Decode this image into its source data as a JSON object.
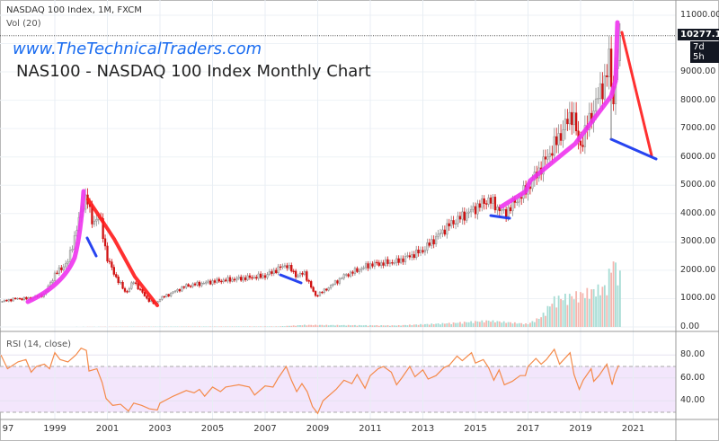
{
  "header": {
    "symbol_line": "NASDAQ 100 Index, 1M, FXCM",
    "volume_line": "Vol (20)",
    "website": "www.TheTechnicalTraders.com",
    "chart_title": "NAS100 - NASDAQ 100 Index Monthly Chart"
  },
  "last_price": {
    "value": "10277.19",
    "countdown": "7d 5h"
  },
  "rsi": {
    "label": "RSI (14, close)"
  },
  "colors": {
    "up": "#8a8a8a",
    "down": "#d01010",
    "vol_up": "#a6dcd4",
    "vol_down": "#f5b5ae",
    "rsi_line": "#f48a4a",
    "rsi_band": "#f3e6fc",
    "pink": "#ee33ee",
    "red": "#ff1a1a",
    "blue": "#1030ee"
  },
  "chart_data": [
    {
      "type": "candlestick",
      "title": "NAS100 - NASDAQ 100 Index Monthly Chart",
      "xlabel": "",
      "ylabel": "",
      "ylim": [
        0,
        11000
      ],
      "xlim": [
        1996.92,
        2022.5
      ],
      "y_ticks": [
        "0.00",
        "1000.00",
        "2000.00",
        "3000.00",
        "4000.00",
        "5000.00",
        "6000.00",
        "7000.00",
        "8000.00",
        "9000.00",
        "10000.00",
        "11000.00"
      ],
      "x_ticks": [
        "97",
        "1999",
        "2001",
        "2003",
        "2005",
        "2007",
        "2009",
        "2011",
        "2013",
        "2015",
        "2017",
        "2019",
        "2021"
      ],
      "close_keypoints": [
        [
          1997.0,
          900
        ],
        [
          1997.5,
          1000
        ],
        [
          1998.0,
          1000
        ],
        [
          1998.6,
          1150
        ],
        [
          1999.0,
          1850
        ],
        [
          1999.5,
          2300
        ],
        [
          1999.9,
          3700
        ],
        [
          2000.2,
          4700
        ],
        [
          2000.4,
          3700
        ],
        [
          2000.7,
          3900
        ],
        [
          2001.0,
          2400
        ],
        [
          2001.3,
          1800
        ],
        [
          2001.7,
          1200
        ],
        [
          2002.0,
          1600
        ],
        [
          2002.5,
          1000
        ],
        [
          2002.8,
          800
        ],
        [
          2003.0,
          1000
        ],
        [
          2004.0,
          1450
        ],
        [
          2005.0,
          1600
        ],
        [
          2006.0,
          1700
        ],
        [
          2007.0,
          1800
        ],
        [
          2007.8,
          2200
        ],
        [
          2008.2,
          1800
        ],
        [
          2008.5,
          1900
        ],
        [
          2008.9,
          1100
        ],
        [
          2009.2,
          1250
        ],
        [
          2010.0,
          1800
        ],
        [
          2011.0,
          2200
        ],
        [
          2012.0,
          2300
        ],
        [
          2013.0,
          2700
        ],
        [
          2014.0,
          3600
        ],
        [
          2015.0,
          4200
        ],
        [
          2015.5,
          4500
        ],
        [
          2016.1,
          4000
        ],
        [
          2016.5,
          4400
        ],
        [
          2017.0,
          4900
        ],
        [
          2018.0,
          6400
        ],
        [
          2018.7,
          7600
        ],
        [
          2018.95,
          6300
        ],
        [
          2019.5,
          7700
        ],
        [
          2020.0,
          8900
        ],
        [
          2020.1,
          9700
        ],
        [
          2020.2,
          7800
        ],
        [
          2020.5,
          10277
        ]
      ],
      "volume_keypoints": [
        [
          1997.0,
          0
        ],
        [
          2007.5,
          20
        ],
        [
          2008.5,
          80
        ],
        [
          2012.0,
          60
        ],
        [
          2014.0,
          150
        ],
        [
          2015.5,
          250
        ],
        [
          2017.0,
          120
        ],
        [
          2017.5,
          400
        ],
        [
          2018.0,
          1100
        ],
        [
          2019.0,
          1300
        ],
        [
          2020.0,
          1600
        ],
        [
          2020.2,
          2700
        ],
        [
          2020.5,
          2000
        ]
      ]
    },
    {
      "type": "line",
      "title": "RSI (14, close)",
      "ylim": [
        20,
        100
      ],
      "y_ticks": [
        "40.00",
        "60.00",
        "80.00"
      ],
      "band": [
        30,
        70
      ],
      "points": [
        [
          1996.95,
          80
        ],
        [
          1997.2,
          68
        ],
        [
          1997.6,
          74
        ],
        [
          1997.9,
          76
        ],
        [
          1998.1,
          65
        ],
        [
          1998.3,
          70
        ],
        [
          1998.6,
          72
        ],
        [
          1998.8,
          68
        ],
        [
          1999.0,
          82
        ],
        [
          1999.2,
          76
        ],
        [
          1999.5,
          74
        ],
        [
          1999.8,
          80
        ],
        [
          2000.0,
          86
        ],
        [
          2000.2,
          84
        ],
        [
          2000.3,
          66
        ],
        [
          2000.6,
          68
        ],
        [
          2000.8,
          56
        ],
        [
          2000.95,
          42
        ],
        [
          2001.2,
          36
        ],
        [
          2001.5,
          37
        ],
        [
          2001.8,
          31
        ],
        [
          2002.0,
          38
        ],
        [
          2002.3,
          36
        ],
        [
          2002.6,
          33
        ],
        [
          2002.9,
          32
        ],
        [
          2003.0,
          38
        ],
        [
          2003.5,
          44
        ],
        [
          2004.0,
          49
        ],
        [
          2004.3,
          47
        ],
        [
          2004.5,
          50
        ],
        [
          2004.7,
          44
        ],
        [
          2005.0,
          52
        ],
        [
          2005.3,
          48
        ],
        [
          2005.5,
          52
        ],
        [
          2006.0,
          54
        ],
        [
          2006.4,
          52
        ],
        [
          2006.6,
          45
        ],
        [
          2007.0,
          53
        ],
        [
          2007.3,
          52
        ],
        [
          2007.5,
          60
        ],
        [
          2007.8,
          70
        ],
        [
          2008.0,
          58
        ],
        [
          2008.2,
          48
        ],
        [
          2008.4,
          55
        ],
        [
          2008.6,
          48
        ],
        [
          2008.8,
          35
        ],
        [
          2009.0,
          29
        ],
        [
          2009.2,
          40
        ],
        [
          2009.7,
          50
        ],
        [
          2010.0,
          58
        ],
        [
          2010.3,
          55
        ],
        [
          2010.5,
          63
        ],
        [
          2010.8,
          51
        ],
        [
          2011.0,
          62
        ],
        [
          2011.3,
          68
        ],
        [
          2011.5,
          70
        ],
        [
          2011.8,
          65
        ],
        [
          2012.0,
          54
        ],
        [
          2012.2,
          60
        ],
        [
          2012.5,
          70
        ],
        [
          2012.7,
          61
        ],
        [
          2013.0,
          67
        ],
        [
          2013.2,
          59
        ],
        [
          2013.5,
          62
        ],
        [
          2013.8,
          69
        ],
        [
          2014.0,
          71
        ],
        [
          2014.3,
          79
        ],
        [
          2014.5,
          75
        ],
        [
          2014.85,
          82
        ],
        [
          2015.0,
          73
        ],
        [
          2015.3,
          76
        ],
        [
          2015.5,
          69
        ],
        [
          2015.7,
          58
        ],
        [
          2015.9,
          67
        ],
        [
          2016.1,
          54
        ],
        [
          2016.4,
          57
        ],
        [
          2016.7,
          62
        ],
        [
          2016.9,
          62
        ],
        [
          2017.0,
          70
        ],
        [
          2017.3,
          77
        ],
        [
          2017.5,
          72
        ],
        [
          2017.7,
          76
        ],
        [
          2018.0,
          85
        ],
        [
          2018.2,
          72
        ],
        [
          2018.4,
          77
        ],
        [
          2018.6,
          82
        ],
        [
          2018.75,
          63
        ],
        [
          2018.95,
          50
        ],
        [
          2019.1,
          58
        ],
        [
          2019.4,
          68
        ],
        [
          2019.5,
          57
        ],
        [
          2019.7,
          62
        ],
        [
          2020.0,
          72
        ],
        [
          2020.2,
          54
        ],
        [
          2020.3,
          63
        ],
        [
          2020.45,
          71
        ]
      ]
    }
  ]
}
